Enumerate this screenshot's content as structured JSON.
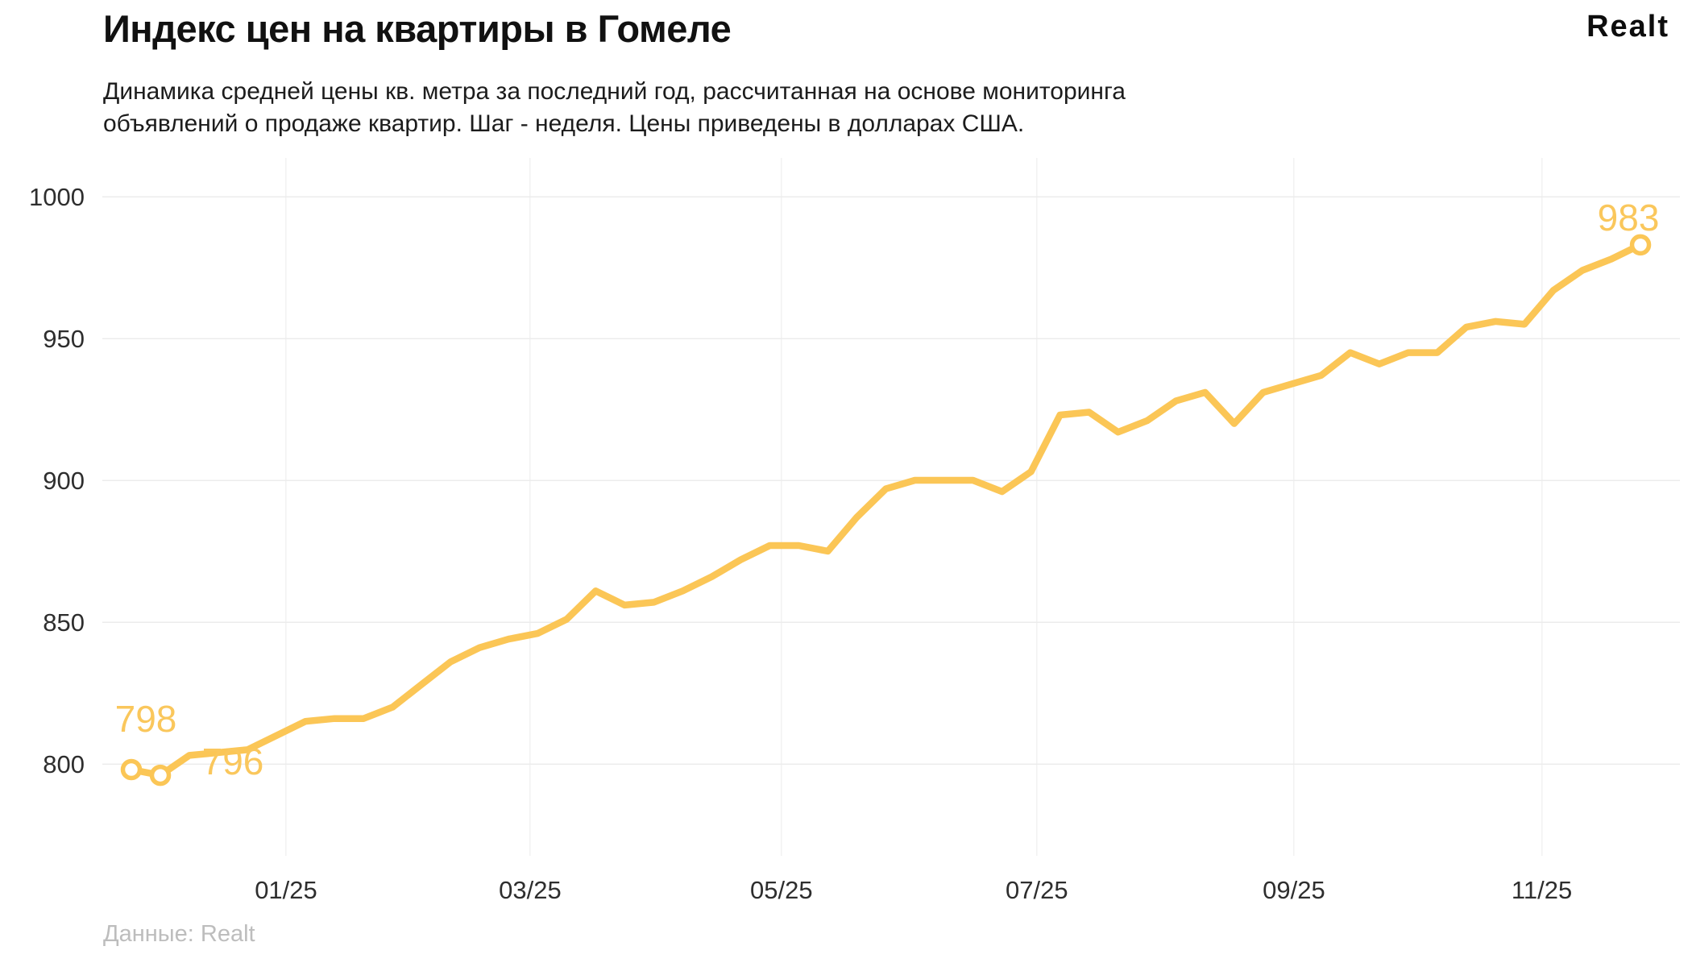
{
  "header": {
    "title": "Индекс цен на квартиры в Гомеле",
    "logo": "Realt",
    "subtitle_line1": "Динамика средней цены кв. метра за последний год, рассчитанная на основе мониторинга",
    "subtitle_line2": "объявлений о продаже квартир. Шаг - неделя. Цены приведены в долларах США."
  },
  "footer": {
    "source": "Данные: Realt"
  },
  "colors": {
    "line": "#FBC656",
    "marker_fill": "#ffffff",
    "grid_horizontal": "#ececec",
    "grid_vertical": "#f2f2f2",
    "tick_text": "#2e2e2e",
    "annotation_text": "#FAC75C",
    "title_text": "#111111",
    "source_text": "#bdbdbd"
  },
  "chart_data": {
    "type": "line",
    "title": "Индекс цен на квартиры в Гомеле",
    "series_name": "Цена кв. метра, USD",
    "x_unit": "week",
    "ylim": [
      780,
      1010
    ],
    "y_ticks": [
      1000,
      950,
      900,
      850,
      800
    ],
    "x_ticks": [
      {
        "label": "01/25",
        "week": 5.33
      },
      {
        "label": "03/25",
        "week": 13.74
      },
      {
        "label": "05/25",
        "week": 22.4
      },
      {
        "label": "07/25",
        "week": 31.2
      },
      {
        "label": "09/25",
        "week": 40.06
      },
      {
        "label": "11/25",
        "week": 48.6
      }
    ],
    "values": [
      798,
      796,
      803,
      804,
      805,
      810,
      815,
      816,
      816,
      820,
      828,
      836,
      841,
      844,
      846,
      851,
      861,
      856,
      857,
      861,
      866,
      872,
      877,
      877,
      875,
      887,
      897,
      900,
      900,
      900,
      896,
      903,
      923,
      924,
      917,
      921,
      928,
      931,
      920,
      931,
      934,
      937,
      945,
      941,
      945,
      945,
      954,
      956,
      955,
      967,
      974,
      978,
      983
    ],
    "annotations": [
      {
        "point_index": 0,
        "label": "798",
        "value": 798
      },
      {
        "point_index": 1,
        "label": "796",
        "value": 796
      },
      {
        "point_index": 52,
        "label": "983",
        "value": 983
      }
    ],
    "grid": "horizontal value lines + vertical month lines",
    "legend": "none"
  }
}
